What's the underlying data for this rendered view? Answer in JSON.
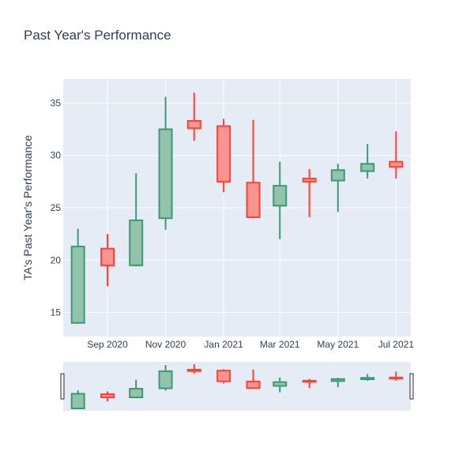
{
  "chart_data": {
    "type": "candlestick",
    "title": "Past Year's Performance",
    "xlabel": "",
    "ylabel": "TA's Past Year's Performance",
    "x_tick_labels": [
      "Sep 2020",
      "Nov 2020",
      "Jan 2021",
      "Mar 2021",
      "May 2021",
      "Jul 2021"
    ],
    "y_ticks": [
      15,
      20,
      25,
      30,
      35
    ],
    "ylim": [
      12.7,
      37.3
    ],
    "grid": true,
    "rangeslider": true,
    "colors": {
      "increasing_line": "#3d9970",
      "increasing_fill": "#93c2ad",
      "decreasing_line": "#ff4136",
      "decreasing_fill": "#f79590",
      "plot_bg": "#e5ecf6",
      "grid": "#ffffff",
      "text": "#2a3f5f"
    },
    "candles": [
      {
        "date": "2020-08-01",
        "open": 14.0,
        "high": 23.0,
        "low": 14.0,
        "close": 21.3
      },
      {
        "date": "2020-09-01",
        "open": 21.1,
        "high": 22.5,
        "low": 17.5,
        "close": 19.5
      },
      {
        "date": "2020-10-01",
        "open": 19.5,
        "high": 28.3,
        "low": 19.4,
        "close": 23.8
      },
      {
        "date": "2020-11-01",
        "open": 24.0,
        "high": 35.6,
        "low": 22.9,
        "close": 32.5
      },
      {
        "date": "2020-12-01",
        "open": 33.3,
        "high": 36.0,
        "low": 31.4,
        "close": 32.6
      },
      {
        "date": "2021-01-01",
        "open": 32.8,
        "high": 33.5,
        "low": 26.5,
        "close": 27.5
      },
      {
        "date": "2021-02-01",
        "open": 27.4,
        "high": 33.4,
        "low": 24.0,
        "close": 24.1
      },
      {
        "date": "2021-03-01",
        "open": 25.2,
        "high": 29.4,
        "low": 22.0,
        "close": 27.1
      },
      {
        "date": "2021-04-01",
        "open": 27.8,
        "high": 28.7,
        "low": 24.1,
        "close": 27.5
      },
      {
        "date": "2021-05-01",
        "open": 27.6,
        "high": 29.2,
        "low": 24.6,
        "close": 28.6
      },
      {
        "date": "2021-06-01",
        "open": 28.5,
        "high": 31.1,
        "low": 27.8,
        "close": 29.2
      },
      {
        "date": "2021-07-01",
        "open": 29.4,
        "high": 32.3,
        "low": 27.8,
        "close": 28.9
      }
    ]
  }
}
